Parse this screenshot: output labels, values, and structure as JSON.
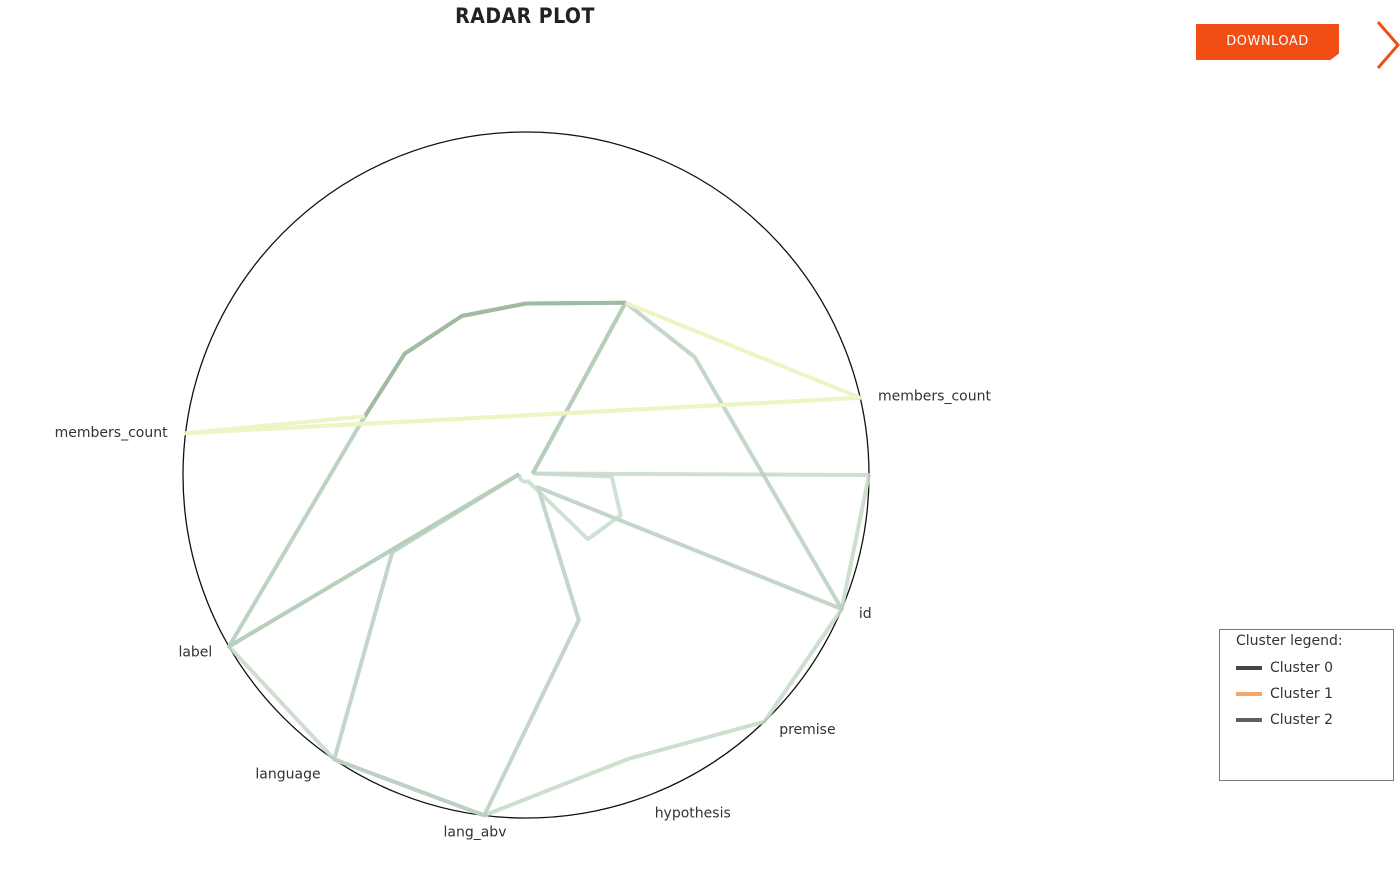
{
  "header": {
    "title": "RADAR PLOT",
    "download_label": "DOWNLOAD",
    "next_icon": "chevron-right-icon",
    "accent_color": "#f04e14"
  },
  "legend": {
    "title": "Cluster legend:",
    "items": [
      {
        "label": "Cluster 0",
        "color": "#3f4a44"
      },
      {
        "label": "Cluster 1",
        "color": "#f3a86a"
      },
      {
        "label": "Cluster 2",
        "color": "#58665a"
      }
    ]
  },
  "chart_data": {
    "type": "radar",
    "axes": [
      {
        "label": "members_count",
        "angle_deg": 13
      },
      {
        "label": "id",
        "angle_deg": -23
      },
      {
        "label": "premise",
        "angle_deg": -46
      },
      {
        "label": "hypothesis",
        "angle_deg": -70
      },
      {
        "label": "lang_abv",
        "angle_deg": -97
      },
      {
        "label": "language",
        "angle_deg": -124
      },
      {
        "label": "label",
        "angle_deg": -150
      },
      {
        "label": "members_count",
        "angle_deg": -187
      }
    ],
    "range": [
      0,
      1
    ],
    "series": [
      {
        "color": "#c5d9c8",
        "opacity": 0.85,
        "width": 4,
        "points": [
          {
            "angle_deg": 13,
            "r": 0.02
          },
          {
            "angle_deg": 0,
            "r": 1.0
          },
          {
            "angle_deg": -23,
            "r": 1.0
          },
          {
            "angle_deg": -46,
            "r": 1.0
          },
          {
            "angle_deg": -70,
            "r": 0.88
          },
          {
            "angle_deg": -97,
            "r": 1.0
          },
          {
            "angle_deg": -124,
            "r": 1.0
          },
          {
            "angle_deg": -150,
            "r": 1.0
          },
          {
            "angle_deg": -187,
            "r": 0.02
          }
        ]
      },
      {
        "color": "#b9cfbe",
        "opacity": 0.85,
        "width": 4,
        "points": [
          {
            "angle_deg": 13,
            "r": 0.02
          },
          {
            "angle_deg": 60,
            "r": 0.58
          },
          {
            "angle_deg": 35,
            "r": 0.6
          },
          {
            "angle_deg": -23,
            "r": 1.0
          },
          {
            "angle_deg": -46,
            "r": 0.05
          },
          {
            "angle_deg": -70,
            "r": 0.45
          },
          {
            "angle_deg": -97,
            "r": 1.0
          },
          {
            "angle_deg": -124,
            "r": 1.0
          },
          {
            "angle_deg": -150,
            "r": 0.45
          },
          {
            "angle_deg": -187,
            "r": 0.02
          }
        ]
      },
      {
        "color": "#c7dccc",
        "opacity": 0.85,
        "width": 4,
        "points": [
          {
            "angle_deg": 13,
            "r": 0.02
          },
          {
            "angle_deg": -1,
            "r": 0.25
          },
          {
            "angle_deg": -23,
            "r": 0.3
          },
          {
            "angle_deg": -46,
            "r": 0.26
          },
          {
            "angle_deg": -70,
            "r": 0.02
          },
          {
            "angle_deg": -97,
            "r": 0.02
          },
          {
            "angle_deg": -124,
            "r": 0.02
          },
          {
            "angle_deg": -150,
            "r": 0.02
          },
          {
            "angle_deg": -187,
            "r": 0.02
          }
        ]
      },
      {
        "color": "#b6cdb9",
        "opacity": 0.9,
        "width": 4,
        "points": [
          {
            "angle_deg": 13,
            "r": 0.02
          },
          {
            "angle_deg": 60,
            "r": 0.58
          },
          {
            "angle_deg": 90,
            "r": 0.5
          },
          {
            "angle_deg": 112,
            "r": 0.5
          },
          {
            "angle_deg": 135,
            "r": 0.5
          },
          {
            "angle_deg": 160,
            "r": 0.5
          },
          {
            "angle_deg": -150,
            "r": 1.0
          },
          {
            "angle_deg": -187,
            "r": 0.02
          }
        ]
      },
      {
        "color": "#9fb79f",
        "opacity": 0.9,
        "width": 4,
        "points": [
          {
            "angle_deg": 60,
            "r": 0.58
          },
          {
            "angle_deg": 90,
            "r": 0.5
          },
          {
            "angle_deg": 112,
            "r": 0.5
          },
          {
            "angle_deg": 135,
            "r": 0.5
          },
          {
            "angle_deg": 160,
            "r": 0.5
          }
        ]
      },
      {
        "color": "#eef3c4",
        "opacity": 0.95,
        "width": 4,
        "points": [
          {
            "angle_deg": -187,
            "r": 1.0
          },
          {
            "angle_deg": 13,
            "r": 1.0
          },
          {
            "angle_deg": 60,
            "r": 0.58
          }
        ]
      },
      {
        "color": "#eef3c4",
        "opacity": 0.95,
        "width": 4,
        "points": [
          {
            "angle_deg": 160,
            "r": 0.5
          },
          {
            "angle_deg": -187,
            "r": 1.0
          },
          {
            "angle_deg": 13,
            "r": 1.0
          }
        ]
      }
    ]
  }
}
